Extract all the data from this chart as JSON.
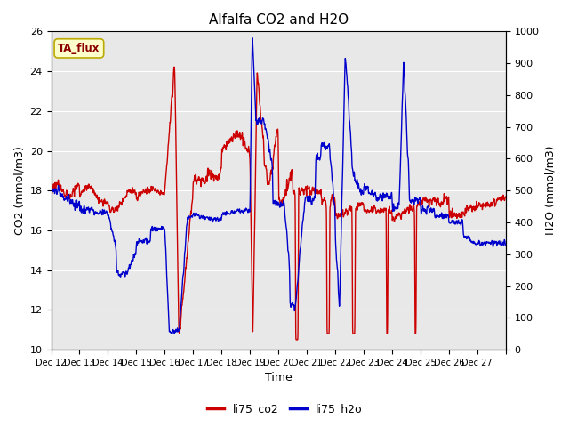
{
  "title": "Alfalfa CO2 and H2O",
  "xlabel": "Time",
  "ylabel_left": "CO2 (mmol/m3)",
  "ylabel_right": "H2O (mmol/m3)",
  "ylim_left": [
    10,
    26
  ],
  "ylim_right": [
    0,
    1000
  ],
  "yticks_left": [
    10,
    12,
    14,
    16,
    18,
    20,
    22,
    24,
    26
  ],
  "yticks_right": [
    0,
    100,
    200,
    300,
    400,
    500,
    600,
    700,
    800,
    900,
    1000
  ],
  "xtick_labels": [
    "Dec 12",
    "Dec 13",
    "Dec 14",
    "Dec 15",
    "Dec 16",
    "Dec 17",
    "Dec 18",
    "Dec 19",
    "Dec 20",
    "Dec 21",
    "Dec 22",
    "Dec 23",
    "Dec 24",
    "Dec 25",
    "Dec 26",
    "Dec 27",
    ""
  ],
  "legend_labels": [
    "li75_co2",
    "li75_h2o"
  ],
  "legend_colors": [
    "#cc0000",
    "#0000cc"
  ],
  "annotation_text": "TA_flux",
  "annotation_bg": "#ffffcc",
  "annotation_border": "#bbaa00",
  "color_co2": "#cc0000",
  "color_h2o": "#0000cc",
  "bg_color": "#e8e8e8",
  "linewidth": 1.0,
  "title_fontsize": 11,
  "axis_fontsize": 9,
  "tick_fontsize": 8
}
